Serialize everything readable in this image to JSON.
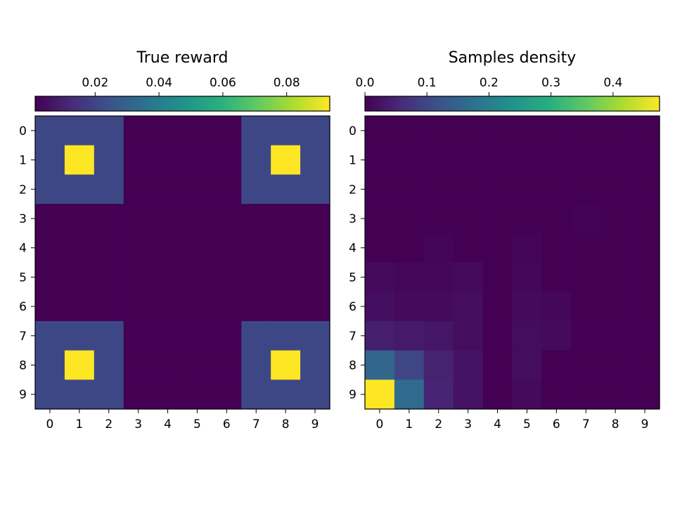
{
  "chart_data": [
    {
      "type": "heatmap",
      "title": "True reward",
      "x_ticks": [
        "0",
        "1",
        "2",
        "3",
        "4",
        "5",
        "6",
        "7",
        "8",
        "9"
      ],
      "y_ticks": [
        "0",
        "1",
        "2",
        "3",
        "4",
        "5",
        "6",
        "7",
        "8",
        "9"
      ],
      "colormap": "viridis",
      "colorbar": {
        "range": [
          0.0012,
          0.0935
        ],
        "ticks": [
          0.02,
          0.04,
          0.06,
          0.08
        ],
        "tick_labels": [
          "0.02",
          "0.04",
          "0.06",
          "0.08"
        ],
        "placement": "top"
      },
      "matrix": [
        [
          0.021,
          0.021,
          0.021,
          0.0012,
          0.0012,
          0.0012,
          0.0012,
          0.021,
          0.021,
          0.021
        ],
        [
          0.021,
          0.0935,
          0.021,
          0.0012,
          0.0012,
          0.0012,
          0.0012,
          0.021,
          0.0935,
          0.021
        ],
        [
          0.021,
          0.021,
          0.021,
          0.0012,
          0.0012,
          0.0012,
          0.0012,
          0.021,
          0.021,
          0.021
        ],
        [
          0.0012,
          0.0012,
          0.0012,
          0.0012,
          0.0012,
          0.0012,
          0.0012,
          0.0012,
          0.0012,
          0.0012
        ],
        [
          0.0012,
          0.0012,
          0.0012,
          0.0012,
          0.0012,
          0.0012,
          0.0012,
          0.0012,
          0.0012,
          0.0012
        ],
        [
          0.0012,
          0.0012,
          0.0012,
          0.0012,
          0.0012,
          0.0012,
          0.0012,
          0.0012,
          0.0012,
          0.0012
        ],
        [
          0.0012,
          0.0012,
          0.0012,
          0.0012,
          0.0012,
          0.0012,
          0.0012,
          0.0012,
          0.0012,
          0.0012
        ],
        [
          0.021,
          0.021,
          0.021,
          0.0012,
          0.0012,
          0.0012,
          0.0012,
          0.021,
          0.021,
          0.021
        ],
        [
          0.021,
          0.0935,
          0.021,
          0.0012,
          0.0012,
          0.0012,
          0.0012,
          0.021,
          0.0935,
          0.021
        ],
        [
          0.021,
          0.021,
          0.021,
          0.0012,
          0.0012,
          0.0012,
          0.0012,
          0.021,
          0.021,
          0.021
        ]
      ]
    },
    {
      "type": "heatmap",
      "title": "Samples density",
      "x_ticks": [
        "0",
        "1",
        "2",
        "3",
        "4",
        "5",
        "6",
        "7",
        "8",
        "9"
      ],
      "y_ticks": [
        "0",
        "1",
        "2",
        "3",
        "4",
        "5",
        "6",
        "7",
        "8",
        "9"
      ],
      "colormap": "viridis",
      "colorbar": {
        "range": [
          0.0,
          0.475
        ],
        "ticks": [
          0.0,
          0.1,
          0.2,
          0.3,
          0.4
        ],
        "tick_labels": [
          "0.0",
          "0.1",
          "0.2",
          "0.3",
          "0.4"
        ],
        "placement": "top"
      },
      "matrix": [
        [
          0.0,
          0.0,
          0.0,
          0.0,
          0.0,
          0.0,
          0.0,
          0.0,
          0.0,
          0.0
        ],
        [
          0.0,
          0.0,
          0.0,
          0.0,
          0.0,
          0.0,
          0.0,
          0.0,
          0.0,
          0.0
        ],
        [
          0.0,
          0.0,
          0.0,
          0.0,
          0.0,
          0.0,
          0.0,
          0.0,
          0.0,
          0.0
        ],
        [
          0.0,
          0.0,
          0.0,
          0.0,
          0.0,
          0.0,
          0.0,
          0.003,
          0.0,
          0.0
        ],
        [
          0.0,
          0.0,
          0.004,
          0.0,
          0.0,
          0.004,
          0.0,
          0.0,
          0.0,
          0.0
        ],
        [
          0.012,
          0.008,
          0.008,
          0.012,
          0.0,
          0.008,
          0.0,
          0.0,
          0.0,
          0.0
        ],
        [
          0.02,
          0.012,
          0.012,
          0.016,
          0.0,
          0.012,
          0.008,
          0.0,
          0.0,
          0.0
        ],
        [
          0.04,
          0.035,
          0.028,
          0.016,
          0.0,
          0.016,
          0.012,
          0.0,
          0.0,
          0.0
        ],
        [
          0.155,
          0.1,
          0.045,
          0.025,
          0.0,
          0.016,
          0.0,
          0.0,
          0.0,
          0.0
        ],
        [
          0.475,
          0.165,
          0.05,
          0.025,
          0.0,
          0.012,
          0.0,
          0.0,
          0.0,
          0.0
        ]
      ]
    }
  ]
}
